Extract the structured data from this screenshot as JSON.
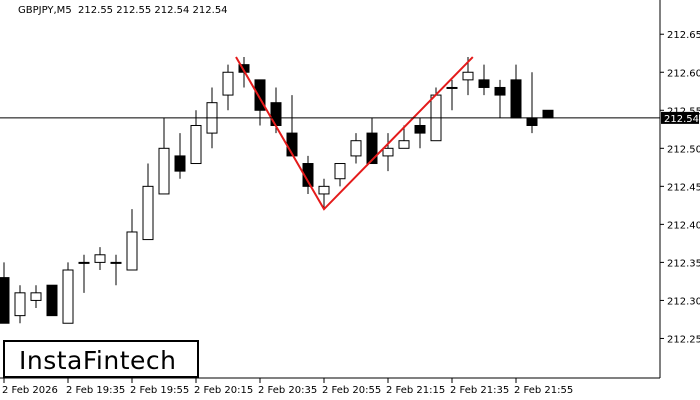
{
  "header": {
    "symbol": "GBPJPY,M5",
    "ohlc": "212.55 212.55 212.54 212.54"
  },
  "logo": {
    "text": "InstaFintech"
  },
  "chart_data": {
    "type": "candlestick",
    "title": "",
    "xlabel": "",
    "ylabel": "",
    "ylim": [
      212.198,
      212.695
    ],
    "y_ticks": [
      "212.65",
      "212.60",
      "212.55",
      "212.50",
      "212.45",
      "212.40",
      "212.35",
      "212.30",
      "212.25"
    ],
    "x_ticks": [
      {
        "index": 0,
        "label": "2 Feb 2026"
      },
      {
        "index": 4,
        "label": "2 Feb 19:35"
      },
      {
        "index": 8,
        "label": "2 Feb 19:55"
      },
      {
        "index": 12,
        "label": "2 Feb 20:15"
      },
      {
        "index": 16,
        "label": "2 Feb 20:35"
      },
      {
        "index": 20,
        "label": "2 Feb 20:55"
      },
      {
        "index": 24,
        "label": "2 Feb 21:15"
      },
      {
        "index": 28,
        "label": "2 Feb 21:35"
      },
      {
        "index": 32,
        "label": "2 Feb 21:55"
      }
    ],
    "current_price": "212.54",
    "candles": [
      {
        "o": 212.33,
        "h": 212.35,
        "l": 212.27,
        "c": 212.27
      },
      {
        "o": 212.28,
        "h": 212.32,
        "l": 212.27,
        "c": 212.31
      },
      {
        "o": 212.3,
        "h": 212.32,
        "l": 212.29,
        "c": 212.31
      },
      {
        "o": 212.32,
        "h": 212.32,
        "l": 212.28,
        "c": 212.28
      },
      {
        "o": 212.27,
        "h": 212.35,
        "l": 212.27,
        "c": 212.34
      },
      {
        "o": 212.35,
        "h": 212.36,
        "l": 212.31,
        "c": 212.35
      },
      {
        "o": 212.35,
        "h": 212.37,
        "l": 212.34,
        "c": 212.36
      },
      {
        "o": 212.35,
        "h": 212.36,
        "l": 212.32,
        "c": 212.35
      },
      {
        "o": 212.34,
        "h": 212.42,
        "l": 212.34,
        "c": 212.39
      },
      {
        "o": 212.38,
        "h": 212.48,
        "l": 212.38,
        "c": 212.45
      },
      {
        "o": 212.44,
        "h": 212.54,
        "l": 212.44,
        "c": 212.5
      },
      {
        "o": 212.49,
        "h": 212.52,
        "l": 212.46,
        "c": 212.47
      },
      {
        "o": 212.48,
        "h": 212.55,
        "l": 212.48,
        "c": 212.53
      },
      {
        "o": 212.52,
        "h": 212.58,
        "l": 212.5,
        "c": 212.56
      },
      {
        "o": 212.57,
        "h": 212.61,
        "l": 212.55,
        "c": 212.6
      },
      {
        "o": 212.61,
        "h": 212.62,
        "l": 212.58,
        "c": 212.6
      },
      {
        "o": 212.59,
        "h": 212.59,
        "l": 212.53,
        "c": 212.55
      },
      {
        "o": 212.56,
        "h": 212.58,
        "l": 212.52,
        "c": 212.53
      },
      {
        "o": 212.52,
        "h": 212.57,
        "l": 212.49,
        "c": 212.49
      },
      {
        "o": 212.48,
        "h": 212.49,
        "l": 212.44,
        "c": 212.45
      },
      {
        "o": 212.44,
        "h": 212.46,
        "l": 212.42,
        "c": 212.45
      },
      {
        "o": 212.46,
        "h": 212.48,
        "l": 212.45,
        "c": 212.48
      },
      {
        "o": 212.49,
        "h": 212.52,
        "l": 212.48,
        "c": 212.51
      },
      {
        "o": 212.52,
        "h": 212.54,
        "l": 212.48,
        "c": 212.48
      },
      {
        "o": 212.49,
        "h": 212.52,
        "l": 212.47,
        "c": 212.5
      },
      {
        "o": 212.5,
        "h": 212.53,
        "l": 212.5,
        "c": 212.51
      },
      {
        "o": 212.53,
        "h": 212.54,
        "l": 212.5,
        "c": 212.52
      },
      {
        "o": 212.51,
        "h": 212.58,
        "l": 212.51,
        "c": 212.57
      },
      {
        "o": 212.58,
        "h": 212.59,
        "l": 212.55,
        "c": 212.58
      },
      {
        "o": 212.59,
        "h": 212.62,
        "l": 212.57,
        "c": 212.6
      },
      {
        "o": 212.59,
        "h": 212.61,
        "l": 212.57,
        "c": 212.58
      },
      {
        "o": 212.58,
        "h": 212.59,
        "l": 212.54,
        "c": 212.57
      },
      {
        "o": 212.59,
        "h": 212.61,
        "l": 212.54,
        "c": 212.54
      },
      {
        "o": 212.54,
        "h": 212.6,
        "l": 212.52,
        "c": 212.53
      },
      {
        "o": 212.55,
        "h": 212.55,
        "l": 212.54,
        "c": 212.54
      }
    ],
    "pattern": {
      "name": "double-top",
      "points": [
        {
          "index": 14.5,
          "price": 212.62
        },
        {
          "index": 20.0,
          "price": 212.42
        },
        {
          "index": 29.3,
          "price": 212.62
        }
      ],
      "color": "#e41b1b"
    },
    "colors": {
      "bear": "#000000",
      "bull": "#ffffff",
      "outline": "#000000",
      "grid_line": "#000000"
    }
  }
}
